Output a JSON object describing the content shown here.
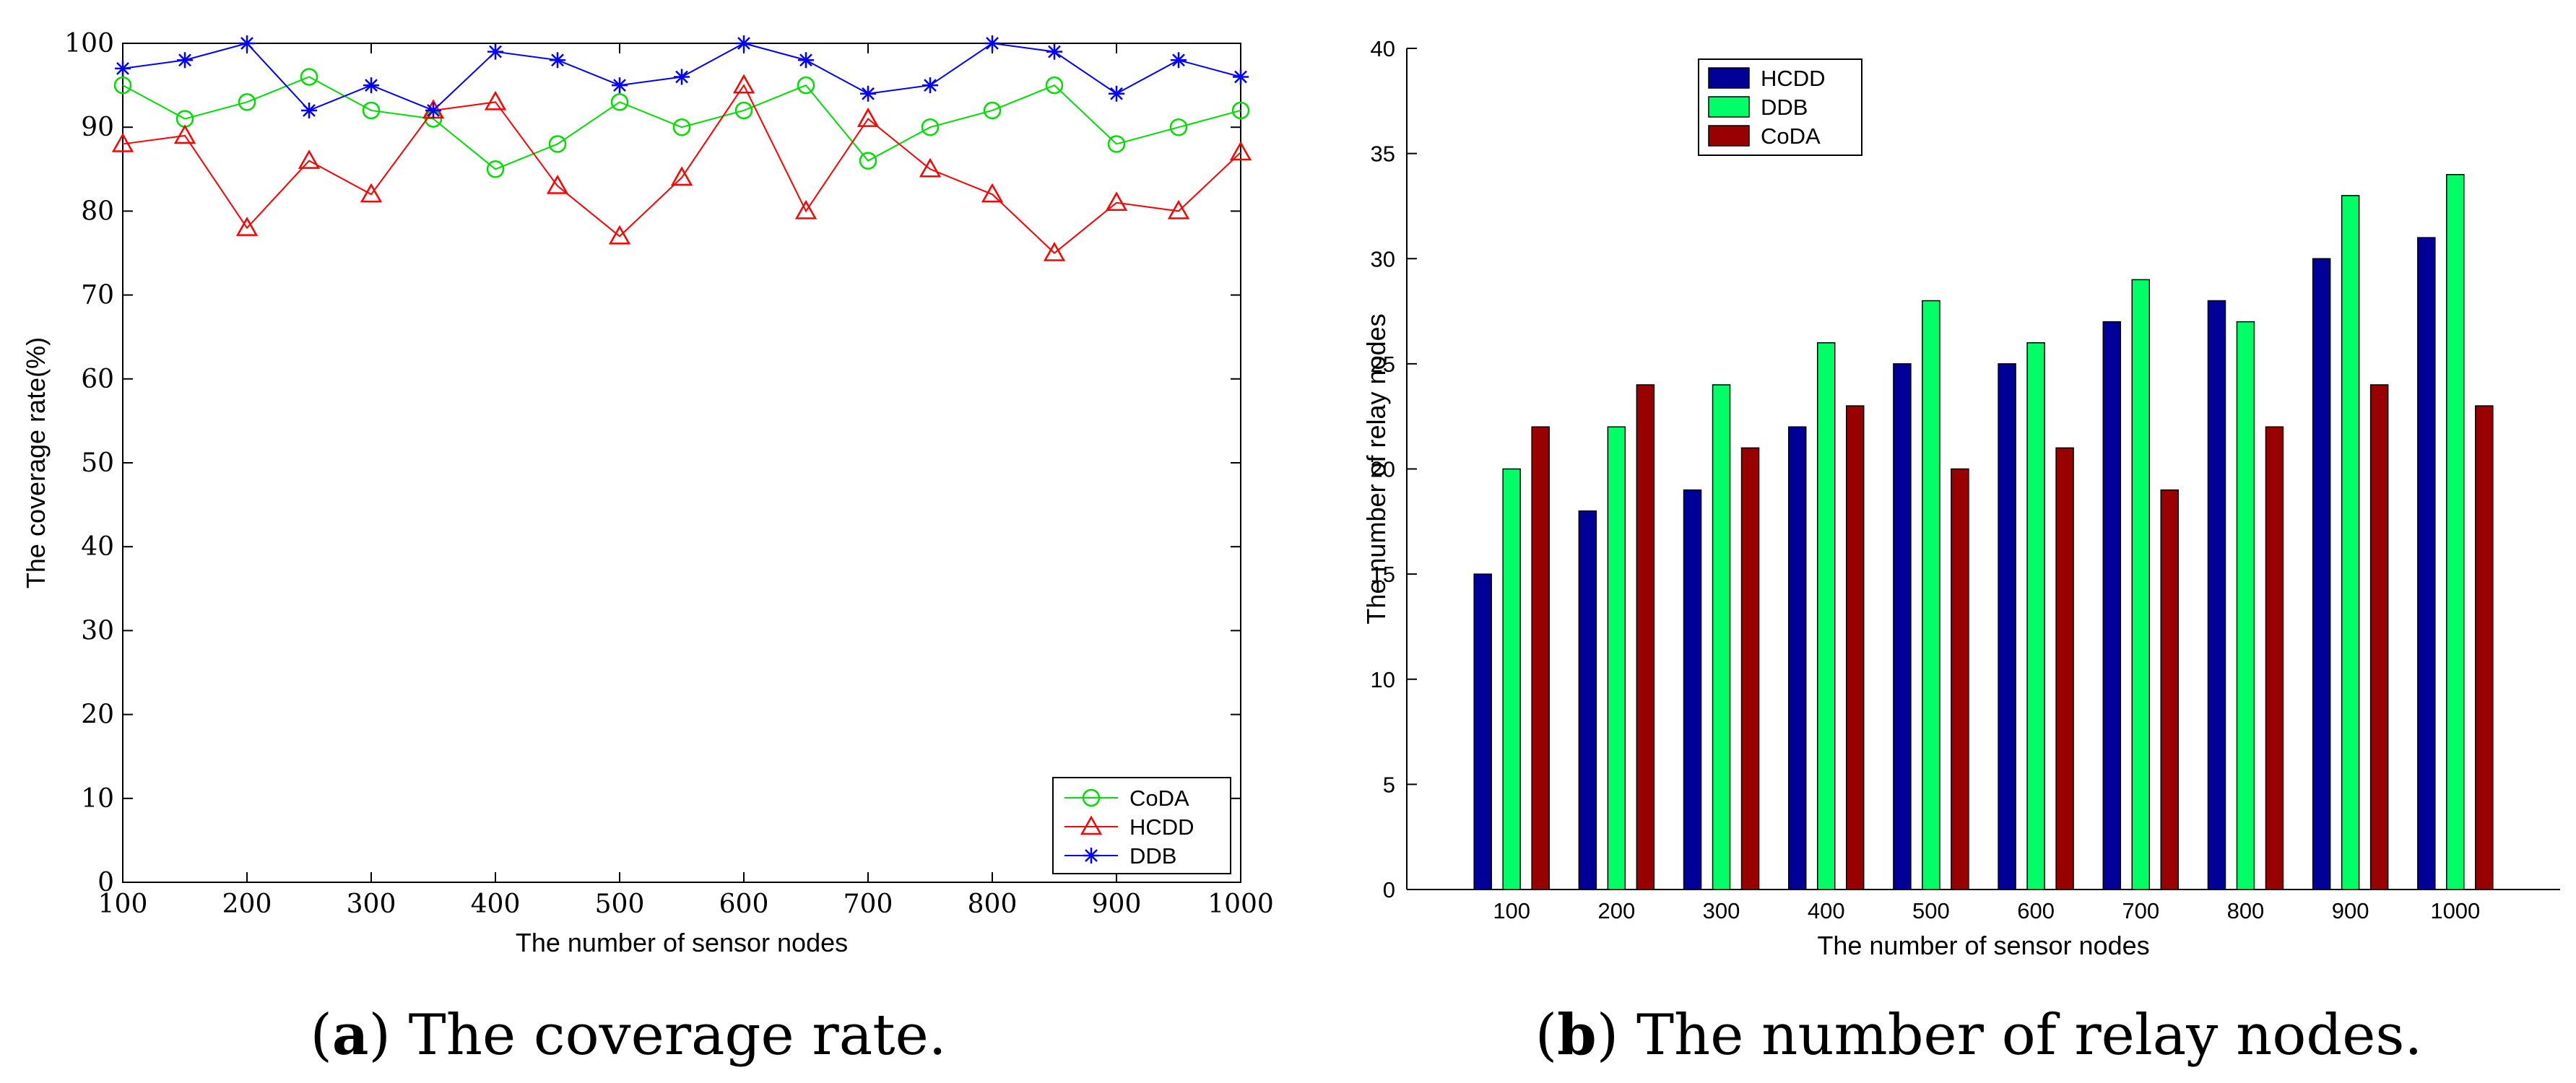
{
  "chart_data": [
    {
      "type": "line",
      "xlabel": "The number of sensor nodes",
      "ylabel": "The coverage rate(%)",
      "xlim": [
        100,
        1000
      ],
      "ylim": [
        0,
        100
      ],
      "xticks": [
        100,
        200,
        300,
        400,
        500,
        600,
        700,
        800,
        900,
        1000
      ],
      "yticks": [
        0,
        10,
        20,
        30,
        40,
        50,
        60,
        70,
        80,
        90,
        100
      ],
      "grid": false,
      "legend_position": "bottom-right",
      "x": [
        100,
        150,
        200,
        250,
        300,
        350,
        400,
        450,
        500,
        550,
        600,
        650,
        700,
        750,
        800,
        850,
        900,
        950,
        1000
      ],
      "series": [
        {
          "name": "CoDA",
          "color": "#00dd00",
          "marker": "circle",
          "values": [
            95,
            91,
            93,
            96,
            92,
            91,
            85,
            88,
            93,
            90,
            92,
            95,
            86,
            90,
            92,
            95,
            88,
            90,
            92
          ]
        },
        {
          "name": "HCDD",
          "color": "#ff0000",
          "marker": "triangle",
          "values": [
            88,
            89,
            78,
            86,
            82,
            92,
            93,
            83,
            77,
            84,
            95,
            80,
            91,
            85,
            82,
            75,
            81,
            80,
            87
          ]
        },
        {
          "name": "DDB",
          "color": "#0000ff",
          "marker": "star",
          "values": [
            97,
            98,
            100,
            92,
            95,
            92,
            99,
            98,
            95,
            96,
            100,
            98,
            94,
            95,
            100,
            99,
            94,
            98,
            96
          ]
        }
      ],
      "caption": {
        "label": "a",
        "text": "The coverage rate."
      }
    },
    {
      "type": "bar",
      "xlabel": "The number of sensor nodes",
      "ylabel": "The number of relay nodes",
      "ylim": [
        0,
        40
      ],
      "yticks": [
        0,
        5,
        10,
        15,
        20,
        25,
        30,
        35,
        40
      ],
      "grid": false,
      "legend_position": "top-left",
      "categories": [
        "100",
        "200",
        "300",
        "400",
        "500",
        "600",
        "700",
        "800",
        "900",
        "1000"
      ],
      "series": [
        {
          "name": "HCDD",
          "color": "#000099",
          "values": [
            15,
            18,
            19,
            22,
            25,
            25,
            27,
            28,
            30,
            31
          ]
        },
        {
          "name": "DDB",
          "color": "#00ff66",
          "values": [
            20,
            22,
            24,
            26,
            28,
            26,
            29,
            27,
            33,
            34
          ]
        },
        {
          "name": "CoDA",
          "color": "#990000",
          "values": [
            22,
            24,
            21,
            23,
            20,
            21,
            19,
            22,
            24,
            23
          ]
        }
      ],
      "caption": {
        "label": "b",
        "text": "The number of relay nodes."
      }
    }
  ]
}
